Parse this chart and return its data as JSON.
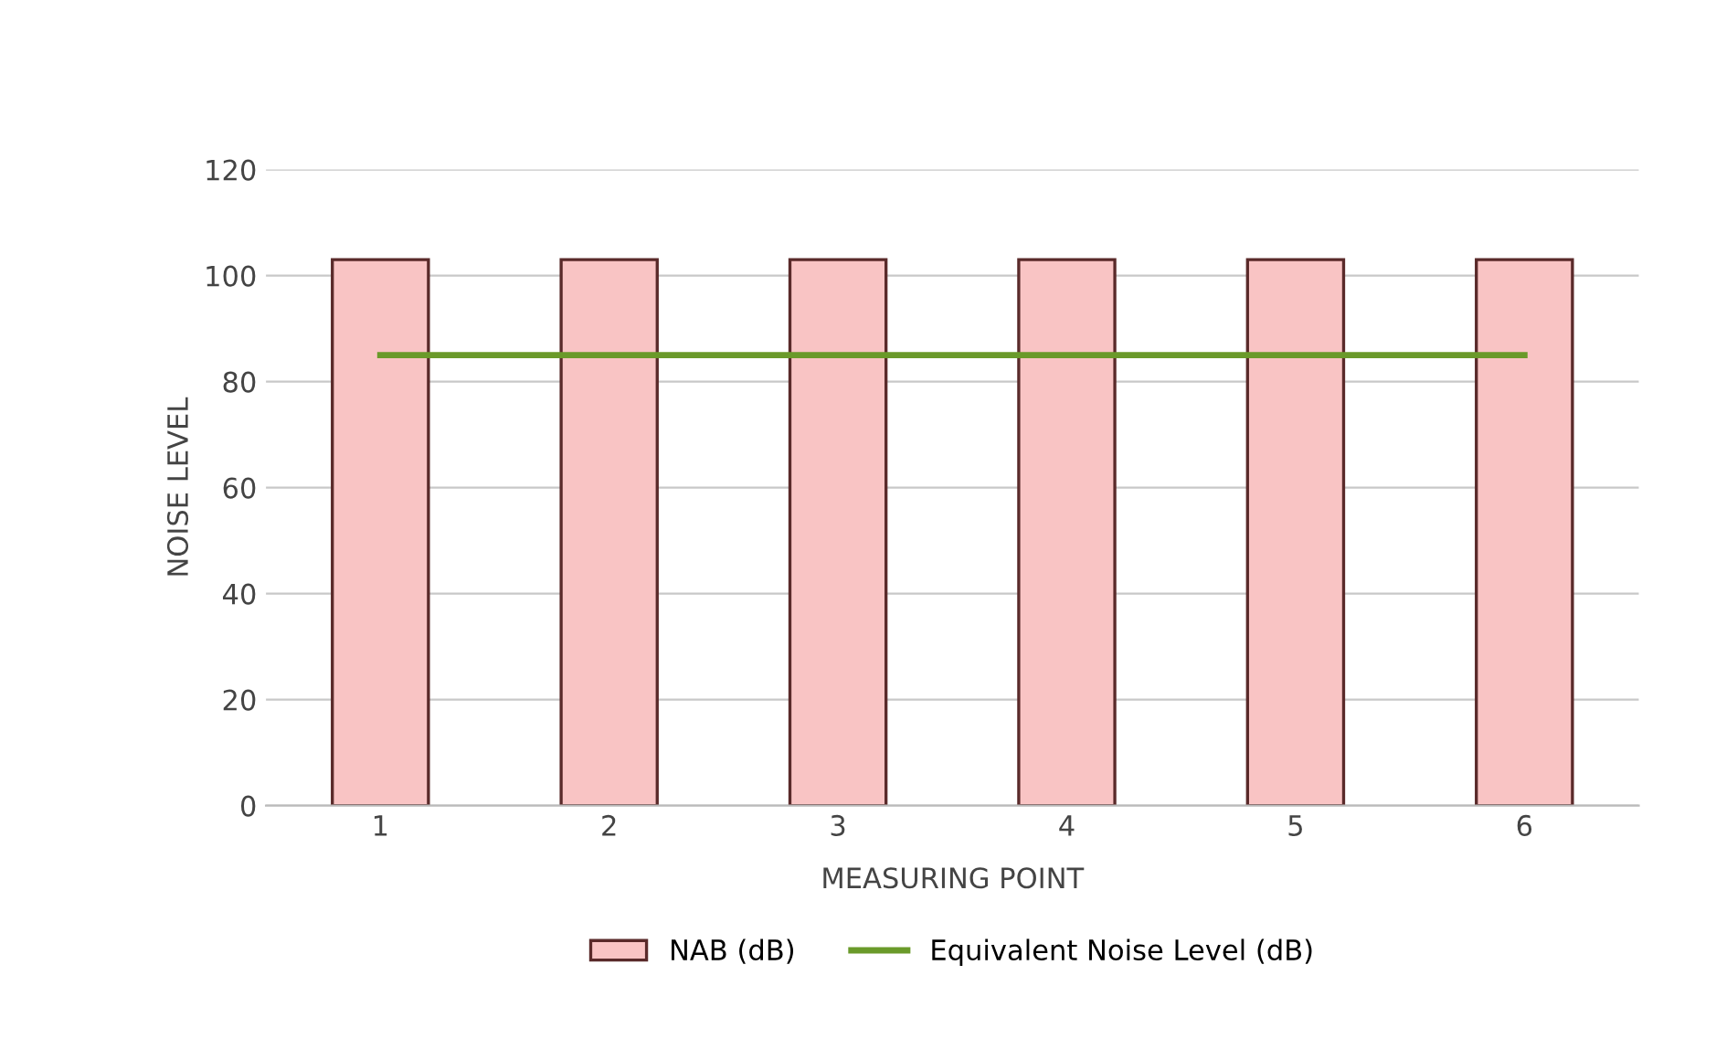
{
  "chart_data": {
    "type": "bar",
    "xlabel": "MEASURING POINT",
    "ylabel": "NOISE LEVEL",
    "categories": [
      "1",
      "2",
      "3",
      "4",
      "5",
      "6"
    ],
    "series": [
      {
        "name": "NAB (dB)",
        "color": "#f9c4c4",
        "values": [
          103,
          103,
          103,
          103,
          103,
          103
        ]
      },
      {
        "name": "Equivalent Noise Level (dB)",
        "type": "line",
        "color": "#6a9a2a",
        "values": [
          85,
          85,
          85,
          85,
          85,
          85
        ]
      }
    ],
    "ylim": [
      0,
      120
    ],
    "yticks": [
      0,
      20,
      40,
      60,
      80,
      100,
      120
    ],
    "grid": "y",
    "legend": "bottom",
    "marker": "none"
  }
}
